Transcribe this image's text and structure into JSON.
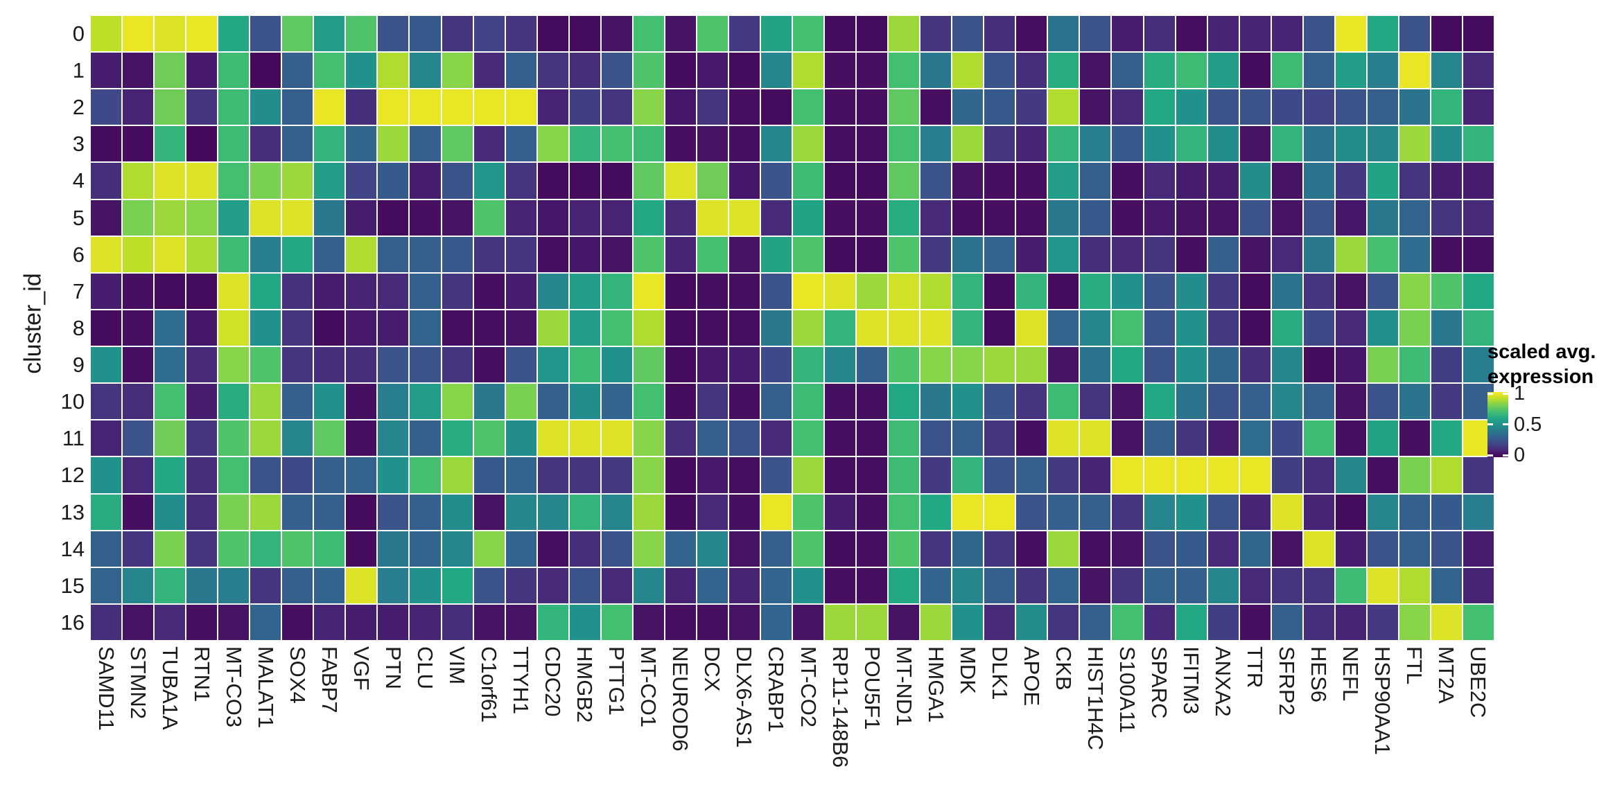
{
  "chart_data": {
    "type": "heatmap",
    "title": "",
    "y_axis_label": "cluster_id",
    "x_axis_label": "",
    "rows": [
      "0",
      "1",
      "2",
      "3",
      "4",
      "5",
      "6",
      "7",
      "8",
      "9",
      "10",
      "11",
      "12",
      "13",
      "14",
      "15",
      "16"
    ],
    "columns": [
      "SAMD11",
      "STMN2",
      "TUBA1A",
      "RTN1",
      "MT-CO3",
      "MALAT1",
      "SOX4",
      "FABP7",
      "VGF",
      "PTN",
      "CLU",
      "VIM",
      "C1orf61",
      "TTYH1",
      "CDC20",
      "HMGB2",
      "PTTG1",
      "MT-CO1",
      "NEUROD6",
      "DCX",
      "DLX6-AS1",
      "CRABP1",
      "MT-CO2",
      "RP11-148B6",
      "POU5F1",
      "MT-ND1",
      "HMGA1",
      "MDK",
      "DLK1",
      "APOE",
      "CKB",
      "HIST1H4C",
      "S100A11",
      "SPARC",
      "IFITM3",
      "ANXA2",
      "TTR",
      "SFRP2",
      "HES6",
      "NEFL",
      "HSP90AA1",
      "FTL",
      "MT2A",
      "UBE2C"
    ],
    "values": [
      [
        0.9,
        0.97,
        0.95,
        0.97,
        0.6,
        0.25,
        0.75,
        0.55,
        0.72,
        0.25,
        0.28,
        0.15,
        0.2,
        0.15,
        0.03,
        0.03,
        0.05,
        0.7,
        0.05,
        0.72,
        0.17,
        0.58,
        0.7,
        0.03,
        0.03,
        0.85,
        0.15,
        0.25,
        0.13,
        0.04,
        0.38,
        0.25,
        0.08,
        0.13,
        0.04,
        0.1,
        0.1,
        0.1,
        0.25,
        0.97,
        0.6,
        0.25,
        0.03,
        0.03
      ],
      [
        0.08,
        0.05,
        0.78,
        0.07,
        0.68,
        0.02,
        0.3,
        0.7,
        0.5,
        0.88,
        0.45,
        0.82,
        0.12,
        0.3,
        0.15,
        0.13,
        0.25,
        0.72,
        0.03,
        0.07,
        0.03,
        0.45,
        0.88,
        0.04,
        0.04,
        0.7,
        0.4,
        0.88,
        0.25,
        0.13,
        0.62,
        0.05,
        0.3,
        0.62,
        0.68,
        0.55,
        0.03,
        0.68,
        0.3,
        0.55,
        0.42,
        0.97,
        0.45,
        0.12
      ],
      [
        0.22,
        0.1,
        0.78,
        0.15,
        0.68,
        0.48,
        0.3,
        0.97,
        0.13,
        0.97,
        0.97,
        0.97,
        0.97,
        0.97,
        0.1,
        0.18,
        0.15,
        0.82,
        0.06,
        0.15,
        0.04,
        0.03,
        0.7,
        0.04,
        0.04,
        0.75,
        0.04,
        0.33,
        0.28,
        0.17,
        0.88,
        0.05,
        0.12,
        0.6,
        0.5,
        0.25,
        0.25,
        0.22,
        0.2,
        0.25,
        0.3,
        0.38,
        0.65,
        0.1
      ],
      [
        0.03,
        0.03,
        0.65,
        0.02,
        0.68,
        0.13,
        0.3,
        0.65,
        0.33,
        0.85,
        0.3,
        0.75,
        0.12,
        0.3,
        0.82,
        0.65,
        0.7,
        0.68,
        0.04,
        0.05,
        0.04,
        0.45,
        0.85,
        0.04,
        0.04,
        0.7,
        0.42,
        0.85,
        0.15,
        0.1,
        0.65,
        0.42,
        0.28,
        0.5,
        0.65,
        0.48,
        0.05,
        0.65,
        0.38,
        0.48,
        0.45,
        0.85,
        0.48,
        0.65
      ],
      [
        0.13,
        0.88,
        0.95,
        0.95,
        0.7,
        0.8,
        0.85,
        0.55,
        0.2,
        0.28,
        0.08,
        0.25,
        0.52,
        0.15,
        0.03,
        0.03,
        0.03,
        0.75,
        0.95,
        0.78,
        0.06,
        0.25,
        0.68,
        0.03,
        0.03,
        0.75,
        0.25,
        0.05,
        0.04,
        0.04,
        0.55,
        0.3,
        0.04,
        0.12,
        0.08,
        0.08,
        0.48,
        0.05,
        0.38,
        0.17,
        0.58,
        0.15,
        0.08,
        0.08
      ],
      [
        0.05,
        0.8,
        0.85,
        0.82,
        0.55,
        0.95,
        0.95,
        0.4,
        0.08,
        0.03,
        0.04,
        0.05,
        0.72,
        0.1,
        0.06,
        0.1,
        0.1,
        0.6,
        0.12,
        0.95,
        0.95,
        0.12,
        0.58,
        0.04,
        0.04,
        0.62,
        0.12,
        0.04,
        0.04,
        0.04,
        0.4,
        0.28,
        0.04,
        0.07,
        0.05,
        0.05,
        0.25,
        0.05,
        0.25,
        0.06,
        0.4,
        0.32,
        0.15,
        0.12
      ],
      [
        0.95,
        0.9,
        0.95,
        0.87,
        0.68,
        0.42,
        0.6,
        0.3,
        0.88,
        0.3,
        0.3,
        0.28,
        0.15,
        0.15,
        0.04,
        0.06,
        0.05,
        0.72,
        0.1,
        0.7,
        0.05,
        0.58,
        0.72,
        0.03,
        0.03,
        0.72,
        0.17,
        0.38,
        0.32,
        0.08,
        0.52,
        0.13,
        0.12,
        0.15,
        0.04,
        0.3,
        0.05,
        0.12,
        0.4,
        0.85,
        0.7,
        0.35,
        0.04,
        0.04
      ],
      [
        0.08,
        0.04,
        0.03,
        0.03,
        0.95,
        0.6,
        0.14,
        0.08,
        0.1,
        0.12,
        0.3,
        0.15,
        0.04,
        0.08,
        0.45,
        0.55,
        0.65,
        0.97,
        0.03,
        0.04,
        0.04,
        0.25,
        0.97,
        0.95,
        0.85,
        0.93,
        0.88,
        0.65,
        0.03,
        0.65,
        0.03,
        0.62,
        0.5,
        0.25,
        0.48,
        0.17,
        0.03,
        0.38,
        0.15,
        0.05,
        0.25,
        0.82,
        0.72,
        0.6
      ],
      [
        0.03,
        0.04,
        0.35,
        0.06,
        0.93,
        0.5,
        0.15,
        0.03,
        0.07,
        0.08,
        0.32,
        0.04,
        0.04,
        0.05,
        0.85,
        0.55,
        0.7,
        0.88,
        0.03,
        0.04,
        0.04,
        0.4,
        0.85,
        0.65,
        0.95,
        0.95,
        0.95,
        0.65,
        0.03,
        0.95,
        0.32,
        0.45,
        0.7,
        0.25,
        0.5,
        0.17,
        0.03,
        0.62,
        0.22,
        0.12,
        0.5,
        0.8,
        0.4,
        0.65
      ],
      [
        0.5,
        0.04,
        0.35,
        0.12,
        0.82,
        0.72,
        0.15,
        0.13,
        0.13,
        0.25,
        0.25,
        0.15,
        0.04,
        0.25,
        0.52,
        0.68,
        0.5,
        0.75,
        0.03,
        0.07,
        0.08,
        0.22,
        0.65,
        0.45,
        0.3,
        0.72,
        0.82,
        0.82,
        0.85,
        0.85,
        0.05,
        0.38,
        0.6,
        0.25,
        0.5,
        0.33,
        0.13,
        0.45,
        0.03,
        0.06,
        0.8,
        0.68,
        0.18,
        0.42
      ],
      [
        0.15,
        0.13,
        0.7,
        0.08,
        0.62,
        0.85,
        0.3,
        0.5,
        0.04,
        0.42,
        0.55,
        0.82,
        0.4,
        0.8,
        0.3,
        0.48,
        0.32,
        0.7,
        0.03,
        0.15,
        0.04,
        0.3,
        0.68,
        0.04,
        0.04,
        0.6,
        0.4,
        0.5,
        0.25,
        0.15,
        0.68,
        0.15,
        0.05,
        0.6,
        0.38,
        0.25,
        0.3,
        0.45,
        0.3,
        0.05,
        0.25,
        0.38,
        0.17,
        0.3
      ],
      [
        0.1,
        0.25,
        0.78,
        0.15,
        0.72,
        0.85,
        0.45,
        0.75,
        0.04,
        0.45,
        0.3,
        0.62,
        0.72,
        0.48,
        0.95,
        0.95,
        0.95,
        0.82,
        0.13,
        0.3,
        0.25,
        0.12,
        0.7,
        0.04,
        0.04,
        0.68,
        0.25,
        0.3,
        0.15,
        0.04,
        0.95,
        0.95,
        0.05,
        0.3,
        0.15,
        0.08,
        0.35,
        0.22,
        0.68,
        0.04,
        0.58,
        0.04,
        0.6,
        0.97
      ],
      [
        0.5,
        0.12,
        0.6,
        0.13,
        0.7,
        0.25,
        0.22,
        0.3,
        0.32,
        0.5,
        0.7,
        0.85,
        0.28,
        0.32,
        0.15,
        0.15,
        0.17,
        0.82,
        0.03,
        0.07,
        0.04,
        0.25,
        0.85,
        0.04,
        0.04,
        0.68,
        0.17,
        0.65,
        0.25,
        0.3,
        0.17,
        0.1,
        0.97,
        0.97,
        0.97,
        0.97,
        0.97,
        0.18,
        0.13,
        0.45,
        0.04,
        0.8,
        0.88,
        0.15
      ],
      [
        0.62,
        0.04,
        0.48,
        0.13,
        0.8,
        0.85,
        0.3,
        0.3,
        0.03,
        0.25,
        0.3,
        0.48,
        0.05,
        0.45,
        0.45,
        0.65,
        0.45,
        0.85,
        0.03,
        0.12,
        0.04,
        0.97,
        0.72,
        0.08,
        0.04,
        0.7,
        0.6,
        0.97,
        0.97,
        0.25,
        0.3,
        0.3,
        0.15,
        0.45,
        0.5,
        0.25,
        0.1,
        0.95,
        0.1,
        0.03,
        0.45,
        0.3,
        0.28,
        0.42
      ],
      [
        0.3,
        0.15,
        0.8,
        0.15,
        0.72,
        0.65,
        0.72,
        0.68,
        0.03,
        0.4,
        0.32,
        0.45,
        0.82,
        0.32,
        0.04,
        0.13,
        0.25,
        0.82,
        0.32,
        0.45,
        0.05,
        0.3,
        0.72,
        0.03,
        0.04,
        0.72,
        0.15,
        0.33,
        0.15,
        0.04,
        0.85,
        0.04,
        0.05,
        0.25,
        0.28,
        0.12,
        0.33,
        0.05,
        0.95,
        0.08,
        0.25,
        0.3,
        0.25,
        0.08
      ],
      [
        0.32,
        0.45,
        0.65,
        0.4,
        0.42,
        0.15,
        0.3,
        0.32,
        0.95,
        0.42,
        0.5,
        0.6,
        0.25,
        0.15,
        0.12,
        0.25,
        0.12,
        0.45,
        0.1,
        0.32,
        0.1,
        0.32,
        0.5,
        0.04,
        0.04,
        0.6,
        0.32,
        0.45,
        0.3,
        0.15,
        0.32,
        0.05,
        0.15,
        0.32,
        0.3,
        0.45,
        0.12,
        0.15,
        0.15,
        0.68,
        0.95,
        0.88,
        0.32,
        0.1
      ],
      [
        0.13,
        0.05,
        0.12,
        0.04,
        0.05,
        0.32,
        0.04,
        0.1,
        0.08,
        0.08,
        0.1,
        0.13,
        0.05,
        0.05,
        0.65,
        0.5,
        0.7,
        0.05,
        0.04,
        0.04,
        0.05,
        0.32,
        0.05,
        0.85,
        0.85,
        0.05,
        0.85,
        0.5,
        0.12,
        0.48,
        0.15,
        0.3,
        0.7,
        0.12,
        0.6,
        0.18,
        0.04,
        0.3,
        0.13,
        0.1,
        0.17,
        0.82,
        0.95,
        0.7
      ]
    ],
    "value_range": [
      0,
      1
    ],
    "grid_on": true,
    "grid_line_color": "#ffffff",
    "text_color": "#1a1a1a",
    "legend": {
      "position": "right",
      "title_lines": [
        "scaled avg.",
        "expression"
      ],
      "ticks": [
        {
          "label": "1",
          "value": 1
        },
        {
          "label": "0.5",
          "value": 0.5
        },
        {
          "label": "0",
          "value": 0
        }
      ]
    },
    "colormap": {
      "name": "viridis",
      "stops": [
        {
          "pos": 0.0,
          "hex": "#440154"
        },
        {
          "pos": 0.1,
          "hex": "#482475"
        },
        {
          "pos": 0.2,
          "hex": "#414487"
        },
        {
          "pos": 0.3,
          "hex": "#355f8d"
        },
        {
          "pos": 0.4,
          "hex": "#2a788e"
        },
        {
          "pos": 0.5,
          "hex": "#21918c"
        },
        {
          "pos": 0.6,
          "hex": "#22a884"
        },
        {
          "pos": 0.7,
          "hex": "#44bf70"
        },
        {
          "pos": 0.8,
          "hex": "#7ad151"
        },
        {
          "pos": 0.9,
          "hex": "#bddf26"
        },
        {
          "pos": 1.0,
          "hex": "#fde725"
        }
      ]
    }
  }
}
